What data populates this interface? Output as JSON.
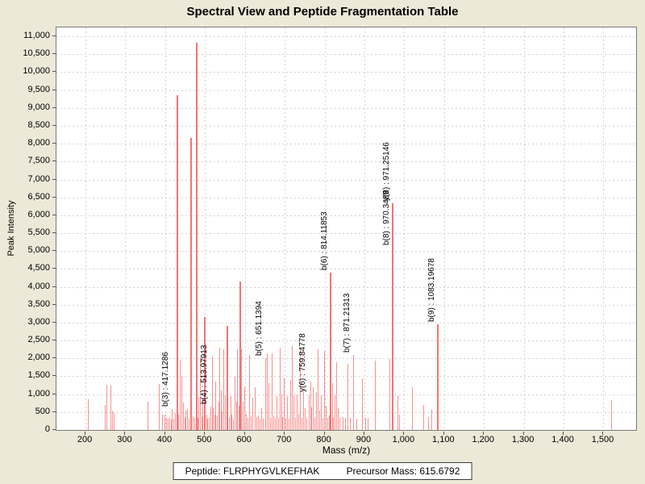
{
  "title": "Spectral View and Peptide Fragmentation Table",
  "chart_data": {
    "type": "bar",
    "title": "Spectral View and Peptide Fragmentation Table",
    "xlabel": "Mass (m/z)",
    "ylabel": "Peak Intensity",
    "xlim": [
      127,
      1582
    ],
    "ylim": [
      0,
      11250
    ],
    "grid": true,
    "x_ticks": [
      200,
      300,
      400,
      500,
      600,
      700,
      800,
      900,
      1000,
      1100,
      1200,
      1300,
      1400,
      1500
    ],
    "y_ticks": [
      0,
      500,
      1000,
      1500,
      2000,
      2500,
      3000,
      3500,
      4000,
      4500,
      5000,
      5500,
      6000,
      6500,
      7000,
      7500,
      8000,
      8500,
      9000,
      9500,
      10000,
      10500,
      11000
    ],
    "colors": {
      "background": "#ece9d8",
      "plot_bg": "#ffffff",
      "grid": "#d2d2d2",
      "border": "#7a7a7a",
      "peak": "#f99090",
      "peak_strong": "#f87272",
      "text": "#000000"
    },
    "peaks": [
      [
        205,
        860
      ],
      [
        249,
        690
      ],
      [
        253,
        1260
      ],
      [
        262,
        1250
      ],
      [
        266,
        540
      ],
      [
        270,
        470
      ],
      [
        355,
        800
      ],
      [
        384,
        1280
      ],
      [
        391,
        420
      ],
      [
        398,
        430
      ],
      [
        403,
        340
      ],
      [
        407,
        310
      ],
      [
        411,
        360
      ],
      [
        414,
        300
      ],
      [
        417.1286,
        580
      ],
      [
        421,
        310
      ],
      [
        425,
        470
      ],
      [
        429.5,
        9350
      ],
      [
        433,
        420
      ],
      [
        437,
        1960
      ],
      [
        441,
        1510
      ],
      [
        444,
        760
      ],
      [
        448,
        350
      ],
      [
        451,
        540
      ],
      [
        455,
        580
      ],
      [
        459,
        310
      ],
      [
        462,
        350
      ],
      [
        465.8,
        8170
      ],
      [
        469,
        380
      ],
      [
        472,
        350
      ],
      [
        478.1,
        10815
      ],
      [
        481,
        350
      ],
      [
        484,
        920
      ],
      [
        488,
        2040
      ],
      [
        491,
        390
      ],
      [
        494,
        875
      ],
      [
        497,
        350
      ],
      [
        499.5,
        3150
      ],
      [
        503,
        420
      ],
      [
        506,
        310
      ],
      [
        510,
        350
      ],
      [
        513.97913,
        650
      ],
      [
        517,
        2070
      ],
      [
        520,
        600
      ],
      [
        523,
        430
      ],
      [
        526,
        1350
      ],
      [
        530,
        410
      ],
      [
        533,
        800
      ],
      [
        536,
        2300
      ],
      [
        539,
        1100
      ],
      [
        542,
        530
      ],
      [
        546,
        2250
      ],
      [
        549,
        980
      ],
      [
        553,
        350
      ],
      [
        556,
        2900
      ],
      [
        559,
        360
      ],
      [
        563,
        950
      ],
      [
        567,
        420
      ],
      [
        570,
        310
      ],
      [
        574,
        1500
      ],
      [
        578,
        800
      ],
      [
        581,
        2250
      ],
      [
        584,
        680
      ],
      [
        588,
        4150
      ],
      [
        591,
        2250
      ],
      [
        595,
        800
      ],
      [
        599,
        1200
      ],
      [
        603,
        450
      ],
      [
        607,
        350
      ],
      [
        611,
        2100
      ],
      [
        615,
        380
      ],
      [
        619,
        900
      ],
      [
        624,
        1200
      ],
      [
        628,
        360
      ],
      [
        633,
        410
      ],
      [
        637,
        320
      ],
      [
        641,
        600
      ],
      [
        645,
        310
      ],
      [
        651.1394,
        2000
      ],
      [
        655,
        2150
      ],
      [
        659,
        1300
      ],
      [
        663,
        350
      ],
      [
        668,
        2150
      ],
      [
        672,
        380
      ],
      [
        676,
        310
      ],
      [
        680,
        950
      ],
      [
        684,
        330
      ],
      [
        687,
        2300
      ],
      [
        691,
        1000
      ],
      [
        694,
        360
      ],
      [
        698,
        1450
      ],
      [
        702,
        330
      ],
      [
        706,
        950
      ],
      [
        710,
        310
      ],
      [
        714,
        1400
      ],
      [
        718,
        2350
      ],
      [
        722,
        980
      ],
      [
        726,
        350
      ],
      [
        730,
        1000
      ],
      [
        734,
        450
      ],
      [
        738,
        2300
      ],
      [
        742,
        330
      ],
      [
        746,
        1050
      ],
      [
        750,
        620
      ],
      [
        754,
        310
      ],
      [
        759.84778,
        1000
      ],
      [
        764,
        1350
      ],
      [
        767,
        630
      ],
      [
        771,
        1200
      ],
      [
        775,
        340
      ],
      [
        779,
        1050
      ],
      [
        783,
        2250
      ],
      [
        787,
        550
      ],
      [
        791,
        980
      ],
      [
        795,
        350
      ],
      [
        799,
        2200
      ],
      [
        803,
        680
      ],
      [
        807,
        330
      ],
      [
        811,
        400
      ],
      [
        814.11853,
        4400
      ],
      [
        818,
        1300
      ],
      [
        822,
        350
      ],
      [
        826,
        960
      ],
      [
        830,
        1900
      ],
      [
        834,
        620
      ],
      [
        838,
        330
      ],
      [
        846,
        360
      ],
      [
        852,
        350
      ],
      [
        858,
        1850
      ],
      [
        864,
        330
      ],
      [
        871.21313,
        2100
      ],
      [
        880,
        320
      ],
      [
        893,
        1450
      ],
      [
        901,
        330
      ],
      [
        908,
        330
      ],
      [
        927,
        1950
      ],
      [
        963,
        1980
      ],
      [
        970.3489,
        5100
      ],
      [
        971.25146,
        6330
      ],
      [
        983,
        970
      ],
      [
        986,
        430
      ],
      [
        1019,
        1195
      ],
      [
        1048,
        700
      ],
      [
        1059,
        365
      ],
      [
        1068,
        555
      ],
      [
        1083.19678,
        2950
      ],
      [
        1520,
        830
      ]
    ],
    "annotations": [
      {
        "label": "b(3) : 417.1286",
        "mz": 417.1286,
        "anchor": 580
      },
      {
        "label": "b(4) : 513.97913",
        "mz": 513.97913,
        "anchor": 650
      },
      {
        "label": "b(5) : 651.1394",
        "mz": 651.1394,
        "anchor": 2000
      },
      {
        "label": "y(6) : 759.84778",
        "mz": 759.84778,
        "anchor": 1000
      },
      {
        "label": "b(6) : 814.11853",
        "mz": 814.11853,
        "anchor": 4400
      },
      {
        "label": "b(7) : 871.21313",
        "mz": 871.21313,
        "anchor": 2100
      },
      {
        "label": "b(8) : 970.3489",
        "mz": 970.3489,
        "anchor": 5100
      },
      {
        "label": "y(8) : 971.25146",
        "mz": 971.25146,
        "anchor": 6330
      },
      {
        "label": "b(9) : 1083.19678",
        "mz": 1083.19678,
        "anchor": 2950
      }
    ]
  },
  "footer": {
    "peptide": "Peptide: FLRPHYGVLKEFHAK",
    "precursor": "Precursor Mass: 615.6792"
  }
}
